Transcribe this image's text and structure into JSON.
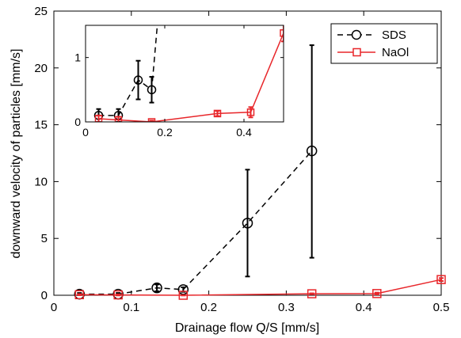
{
  "chart_data": {
    "type": "line",
    "xlabel": "Drainage flow Q/S [mm/s]",
    "ylabel": "downward velocity of particles [mm/s]",
    "xlim": [
      0,
      0.5
    ],
    "ylim": [
      0,
      25
    ],
    "x_ticks": [
      "0",
      "0.1",
      "0.2",
      "0.3",
      "0.4",
      "0.5"
    ],
    "y_ticks": [
      "0",
      "5",
      "10",
      "15",
      "20",
      "25"
    ],
    "grid": false,
    "legend_position": "top-right",
    "series": [
      {
        "name": "SDS",
        "color": "#000000",
        "line_style": "dashed",
        "marker": "circle",
        "x": [
          0.033,
          0.083,
          0.133,
          0.167,
          0.25,
          0.333
        ],
        "y": [
          0.1,
          0.1,
          0.65,
          0.5,
          6.35,
          12.7
        ],
        "err_low": [
          0.1,
          0.1,
          0.3,
          0.2,
          4.7,
          9.4
        ],
        "err_high": [
          0.1,
          0.1,
          0.3,
          0.2,
          4.7,
          9.3
        ]
      },
      {
        "name": "NaOl",
        "color": "#e8262a",
        "line_style": "solid",
        "marker": "square",
        "x": [
          0.033,
          0.083,
          0.167,
          0.333,
          0.417,
          0.5
        ],
        "y": [
          0.05,
          0.03,
          0.0,
          0.13,
          0.15,
          1.38
        ],
        "err_low": [
          0.05,
          0.05,
          0.02,
          0.04,
          0.08,
          0.13
        ],
        "err_high": [
          0.05,
          0.05,
          0.02,
          0.04,
          0.08,
          0.13
        ]
      }
    ],
    "inset": {
      "xlim": [
        0,
        0.5
      ],
      "ylim": [
        0,
        1.5
      ],
      "x_ticks": [
        "0",
        "0.2",
        "0.4"
      ],
      "y_ticks": [
        "0",
        "1"
      ]
    }
  }
}
